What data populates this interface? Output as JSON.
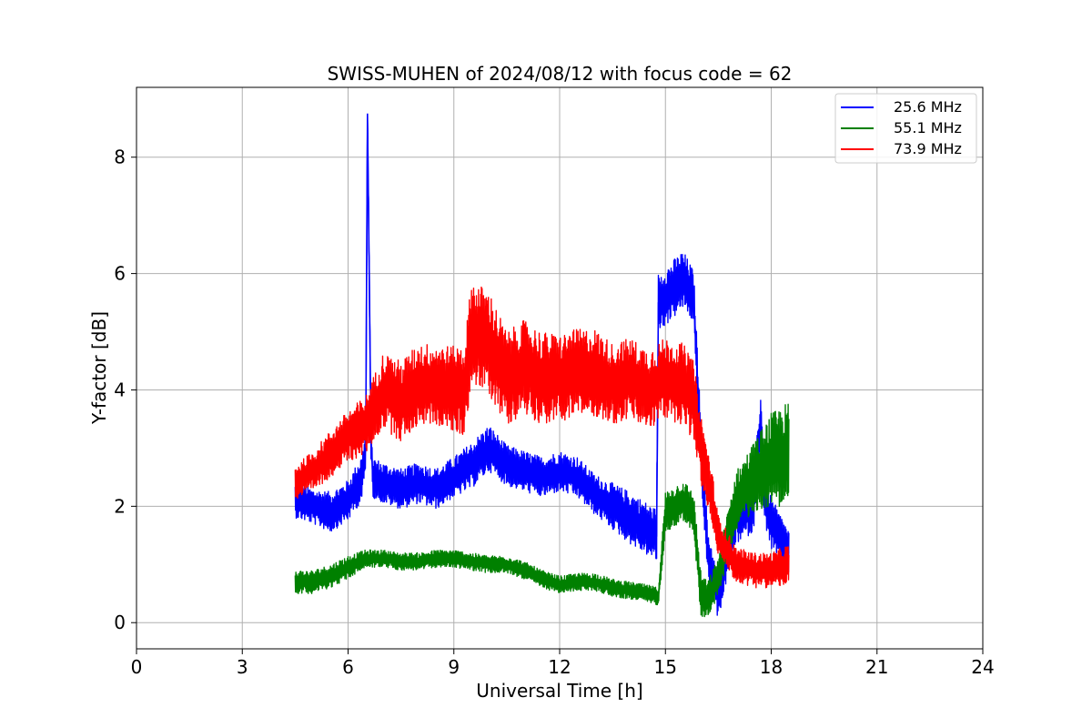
{
  "chart_data": {
    "type": "line",
    "title": "SWISS-MUHEN of 2024/08/12 with focus code = 62",
    "xlabel": "Universal Time [h]",
    "ylabel": "Y-factor [dB]",
    "xlim": [
      0,
      24
    ],
    "ylim": [
      -0.45,
      9.2
    ],
    "xticks": [
      0,
      3,
      6,
      9,
      12,
      15,
      18,
      21,
      24
    ],
    "yticks": [
      0,
      2,
      4,
      6,
      8
    ],
    "grid": true,
    "legend_position": "top-right",
    "series": [
      {
        "name": "25.6 MHz",
        "color": "#0000ff",
        "x": [
          4.5,
          5.0,
          5.5,
          6.0,
          6.4,
          6.5,
          6.55,
          6.6,
          6.65,
          6.7,
          7.0,
          7.5,
          8.0,
          8.5,
          9.0,
          9.5,
          10.0,
          10.5,
          11.0,
          11.5,
          12.0,
          12.5,
          13.0,
          13.5,
          14.0,
          14.5,
          14.75,
          14.8,
          15.0,
          15.5,
          15.8,
          16.0,
          16.2,
          16.5,
          16.8,
          17.0,
          17.5,
          17.7,
          17.8,
          18.0,
          18.5
        ],
        "y": [
          2.1,
          2.0,
          1.9,
          2.1,
          2.5,
          3.0,
          8.75,
          6.0,
          3.2,
          2.5,
          2.4,
          2.3,
          2.4,
          2.3,
          2.5,
          2.7,
          3.0,
          2.7,
          2.6,
          2.5,
          2.6,
          2.5,
          2.2,
          2.0,
          1.8,
          1.6,
          1.5,
          5.5,
          5.6,
          5.9,
          5.6,
          3.0,
          1.2,
          0.4,
          1.3,
          1.8,
          2.0,
          3.5,
          2.2,
          1.7,
          1.2
        ],
        "band": [
          0.3,
          0.3,
          0.35,
          0.35,
          0.4,
          0.4,
          0.2,
          0.3,
          0.4,
          0.35,
          0.35,
          0.35,
          0.35,
          0.35,
          0.35,
          0.4,
          0.4,
          0.35,
          0.35,
          0.35,
          0.35,
          0.35,
          0.35,
          0.4,
          0.45,
          0.45,
          0.45,
          0.5,
          0.5,
          0.5,
          0.45,
          0.5,
          0.45,
          0.35,
          0.4,
          0.45,
          0.45,
          0.5,
          0.45,
          0.45,
          0.4
        ]
      },
      {
        "name": "55.1 MHz",
        "color": "#008000",
        "x": [
          4.5,
          5.0,
          5.5,
          6.0,
          6.5,
          7.0,
          7.5,
          8.0,
          8.5,
          9.0,
          9.5,
          10.0,
          10.5,
          11.0,
          11.5,
          12.0,
          12.5,
          13.0,
          13.5,
          14.0,
          14.5,
          14.8,
          15.0,
          15.5,
          15.8,
          16.0,
          16.2,
          16.5,
          17.0,
          17.5,
          18.0,
          18.5
        ],
        "y": [
          0.7,
          0.7,
          0.8,
          0.95,
          1.1,
          1.1,
          1.05,
          1.05,
          1.1,
          1.1,
          1.05,
          1.0,
          1.0,
          0.9,
          0.75,
          0.65,
          0.7,
          0.7,
          0.6,
          0.55,
          0.5,
          0.45,
          1.9,
          2.1,
          1.9,
          0.5,
          0.4,
          0.8,
          2.1,
          2.5,
          2.8,
          2.9
        ],
        "band": [
          0.2,
          0.2,
          0.2,
          0.2,
          0.15,
          0.15,
          0.15,
          0.15,
          0.15,
          0.15,
          0.15,
          0.15,
          0.15,
          0.15,
          0.15,
          0.15,
          0.15,
          0.15,
          0.15,
          0.15,
          0.15,
          0.15,
          0.35,
          0.35,
          0.35,
          0.4,
          0.3,
          0.35,
          0.5,
          0.6,
          0.8,
          0.9
        ]
      },
      {
        "name": "73.9 MHz",
        "color": "#ff0000",
        "x": [
          4.5,
          5.0,
          5.5,
          6.0,
          6.5,
          7.0,
          7.5,
          8.0,
          8.5,
          9.0,
          9.3,
          9.5,
          10.0,
          10.5,
          11.0,
          11.5,
          12.0,
          12.5,
          13.0,
          13.5,
          14.0,
          14.5,
          15.0,
          15.5,
          15.8,
          16.0,
          16.3,
          16.5,
          17.0,
          17.5,
          18.0,
          18.5
        ],
        "y": [
          2.4,
          2.6,
          2.9,
          3.2,
          3.4,
          4.0,
          3.8,
          4.1,
          4.1,
          4.0,
          4.0,
          5.0,
          4.8,
          4.2,
          4.4,
          4.2,
          4.2,
          4.3,
          4.3,
          4.1,
          4.2,
          4.0,
          4.2,
          4.1,
          3.8,
          3.0,
          2.2,
          1.5,
          1.0,
          0.9,
          0.9,
          1.0
        ],
        "band": [
          0.3,
          0.35,
          0.4,
          0.45,
          0.5,
          0.65,
          0.7,
          0.7,
          0.7,
          0.75,
          0.8,
          0.9,
          0.9,
          0.8,
          0.8,
          0.8,
          0.75,
          0.75,
          0.75,
          0.7,
          0.7,
          0.7,
          0.7,
          0.7,
          0.7,
          0.6,
          0.5,
          0.35,
          0.3,
          0.3,
          0.3,
          0.35
        ]
      }
    ]
  }
}
